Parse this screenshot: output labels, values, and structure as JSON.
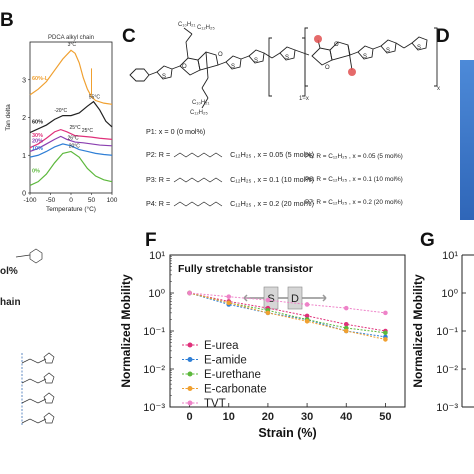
{
  "panels": {
    "b": {
      "letter": "B"
    },
    "c": {
      "letter": "C"
    },
    "d": {
      "letter": "D"
    },
    "f": {
      "letter": "F"
    },
    "g": {
      "letter": "G"
    }
  },
  "colors": {
    "orange": "#f0a030",
    "black": "#222222",
    "magenta": "#e0307a",
    "purple": "#8a3fb0",
    "blue": "#2f7fd6",
    "green": "#5cb83c",
    "pink": "#ee82c8",
    "blue_panel": "#3a78c8",
    "red_atom": "#e05050"
  },
  "chart_b": {
    "type": "line",
    "title": "PDCA alkyl chain",
    "xlabel": "Temperature (°C)",
    "ylabel": "Tan delta",
    "xticks": [
      "-100",
      "-50",
      "0",
      "50",
      "100"
    ],
    "yticks": [
      "0",
      "1",
      "2",
      "3"
    ],
    "xlim": [
      -100,
      100
    ],
    "ylim": [
      0,
      4
    ],
    "series": [
      {
        "name": "60%-L",
        "color": "#f0a030",
        "x": [
          -100,
          -80,
          -60,
          -40,
          -20,
          0,
          10,
          20,
          30,
          40,
          50,
          60,
          80,
          100
        ],
        "y": [
          2.6,
          2.75,
          2.95,
          3.25,
          3.55,
          3.78,
          3.7,
          3.45,
          3.05,
          2.75,
          2.55,
          2.45,
          2.38,
          2.35
        ]
      },
      {
        "name": "60%",
        "color": "#222222",
        "x": [
          -100,
          -80,
          -60,
          -40,
          -20,
          0,
          20,
          40,
          55,
          70,
          85,
          100
        ],
        "y": [
          1.6,
          1.7,
          1.8,
          1.95,
          2.05,
          2.05,
          2.12,
          2.3,
          2.42,
          2.2,
          1.9,
          1.75
        ]
      },
      {
        "name": "30%",
        "color": "#e0307a",
        "x": [
          -100,
          -80,
          -60,
          -40,
          -25,
          -10,
          10,
          30,
          50,
          70,
          100
        ],
        "y": [
          1.2,
          1.3,
          1.45,
          1.62,
          1.68,
          1.62,
          1.52,
          1.5,
          1.48,
          1.45,
          1.42
        ]
      },
      {
        "name": "20%",
        "color": "#8a3fb0",
        "x": [
          -100,
          -80,
          -60,
          -40,
          -25,
          -10,
          10,
          30,
          50,
          70,
          100
        ],
        "y": [
          1.1,
          1.18,
          1.3,
          1.42,
          1.5,
          1.42,
          1.35,
          1.33,
          1.3,
          1.27,
          1.25
        ]
      },
      {
        "name": "10%",
        "color": "#2f7fd6",
        "x": [
          -100,
          -80,
          -60,
          -40,
          -20,
          0,
          20,
          40,
          60,
          80,
          100
        ],
        "y": [
          0.95,
          1.0,
          1.1,
          1.22,
          1.3,
          1.25,
          1.15,
          1.1,
          1.05,
          1.02,
          1.0
        ]
      },
      {
        "name": "0%",
        "color": "#5cb83c",
        "x": [
          -100,
          -80,
          -60,
          -40,
          -20,
          0,
          20,
          40,
          60,
          80,
          100
        ],
        "y": [
          0.2,
          0.3,
          0.5,
          0.8,
          1.05,
          1.1,
          0.95,
          0.65,
          0.45,
          0.35,
          0.3
        ]
      }
    ],
    "annotations": [
      {
        "text": "3°C",
        "x": 2,
        "y": 3.9,
        "color": "#222222"
      },
      {
        "text": "55°C",
        "x": 57,
        "y": 2.5,
        "color": "#222222"
      },
      {
        "text": "-20°C",
        "x": -25,
        "y": 2.15,
        "color": "#222222"
      },
      {
        "text": "25°C",
        "x": 10,
        "y": 1.7,
        "color": "#222222"
      },
      {
        "text": "25°C",
        "x": 40,
        "y": 1.62,
        "color": "#222222"
      },
      {
        "text": "26°C",
        "x": 5,
        "y": 1.42,
        "color": "#222222"
      },
      {
        "text": "20°C",
        "x": 8,
        "y": 1.2,
        "color": "#222222"
      }
    ]
  },
  "chem_c": {
    "chain_top_1": "C₁₀H₂₁",
    "chain_top_2": "C₁₂H₂₅",
    "chain_bottom_1": "C₁₀H₂₁",
    "chain_bottom_2": "C₁₂H₂₅",
    "sub_1x": "1−x",
    "sub_x": "x",
    "p1": "P1: x = 0 (0 mol%)",
    "p2": "P2: R =",
    "p2_tail": "C₁₂H₂₅ , x = 0.05 (5 mol%)",
    "p3": "P3: R =",
    "p3_tail": "C₁₂H₂₅ , x = 0.1 (10 mol%)",
    "p4": "P4: R =",
    "p4_tail": "C₁₂H₂₅ , x = 0.2 (20 mol%)",
    "p5": "P5: R = ",
    "p5_tail": "C₁₂H₂₅ , x = 0.05 (5 mol%)",
    "p6": "P6: R = ",
    "p6_tail": "C₁₂H₂₅ , x = 0.1 (10 mol%)",
    "p7": "P7: R = ",
    "p7_tail": "C₁₂H₂₅ , x = 0.2 (20 mol%)"
  },
  "left_fragments": {
    "mol": "ol%",
    "chain": "hain"
  },
  "chart_f": {
    "type": "line",
    "title": "Fully stretchable transistor",
    "xlabel": "Strain (%)",
    "ylabel": "Normalized Mobility",
    "xticks": [
      "0",
      "10",
      "20",
      "30",
      "40",
      "50"
    ],
    "yticks": [
      "10¹",
      "10⁰",
      "10⁻¹",
      "10⁻²",
      "10⁻³"
    ],
    "xlim": [
      -5,
      55
    ],
    "ylim_log10": [
      -3,
      1
    ],
    "inset": {
      "s": "S",
      "d": "D"
    },
    "series": [
      {
        "name": "E-urea",
        "color": "#e0307a",
        "x": [
          0,
          10,
          20,
          30,
          40,
          50
        ],
        "y": [
          1.0,
          0.6,
          0.4,
          0.25,
          0.15,
          0.1
        ]
      },
      {
        "name": "E-amide",
        "color": "#2f7fd6",
        "x": [
          0,
          10,
          20,
          30,
          40,
          50
        ],
        "y": [
          1.0,
          0.5,
          0.3,
          0.2,
          0.1,
          0.07
        ]
      },
      {
        "name": "E-urethane",
        "color": "#5cb83c",
        "x": [
          0,
          10,
          20,
          30,
          40,
          50
        ],
        "y": [
          1.0,
          0.55,
          0.35,
          0.2,
          0.12,
          0.09
        ]
      },
      {
        "name": "E-carbonate",
        "color": "#f0a030",
        "x": [
          0,
          10,
          20,
          30,
          40,
          50
        ],
        "y": [
          1.0,
          0.55,
          0.3,
          0.18,
          0.1,
          0.06
        ]
      },
      {
        "name": "TVT",
        "color": "#ee82c8",
        "x": [
          0,
          10,
          20,
          30,
          40,
          50
        ],
        "y": [
          1.0,
          0.8,
          0.65,
          0.5,
          0.4,
          0.3
        ]
      }
    ]
  },
  "chart_g": {
    "ylabel": "Normalized Mobility",
    "yticks": [
      "10¹",
      "10⁰",
      "10⁻¹",
      "10⁻²",
      "10⁻³"
    ]
  }
}
